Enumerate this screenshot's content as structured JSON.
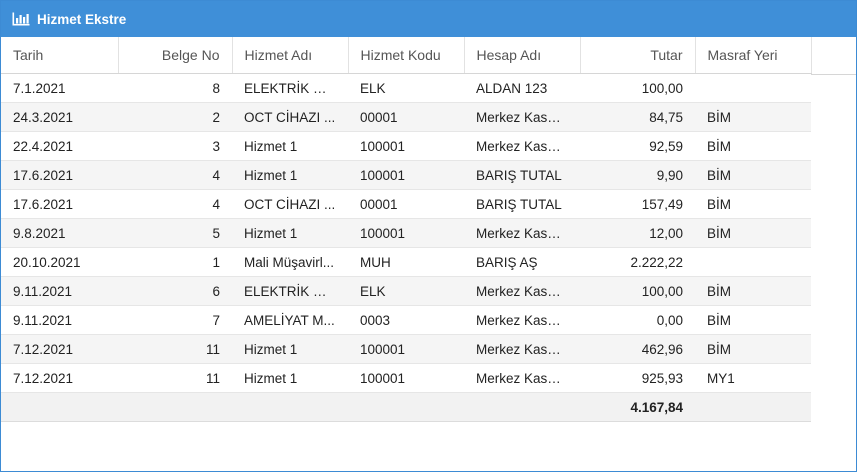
{
  "panel": {
    "title": "Hizmet Ekstre",
    "icon": "bar-chart-icon",
    "header_color": "#3f8fd8"
  },
  "columns": [
    "Tarih",
    "Belge No",
    "Hizmet Adı",
    "Hizmet Kodu",
    "Hesap Adı",
    "Tutar",
    "Masraf Yeri"
  ],
  "rows": [
    [
      "7.1.2021",
      "8",
      "ELEKTRİK Gİ...",
      "ELK",
      "ALDAN 123",
      "100,00",
      ""
    ],
    [
      "24.3.2021",
      "2",
      "OCT CİHAZI ...",
      "00001",
      "Merkez Kasa ...",
      "84,75",
      "BİM"
    ],
    [
      "22.4.2021",
      "3",
      "Hizmet 1",
      "100001",
      "Merkez Kasa ...",
      "92,59",
      "BİM"
    ],
    [
      "17.6.2021",
      "4",
      "Hizmet 1",
      "100001",
      "BARIŞ TUTAL",
      "9,90",
      "BİM"
    ],
    [
      "17.6.2021",
      "4",
      "OCT CİHAZI ...",
      "00001",
      "BARIŞ TUTAL",
      "157,49",
      "BİM"
    ],
    [
      "9.8.2021",
      "5",
      "Hizmet 1",
      "100001",
      "Merkez Kasa ...",
      "12,00",
      "BİM"
    ],
    [
      "20.10.2021",
      "1",
      "Mali Müşavirl...",
      "MUH",
      "BARIŞ AŞ",
      "2.222,22",
      ""
    ],
    [
      "9.11.2021",
      "6",
      "ELEKTRİK Gİ...",
      "ELK",
      "Merkez Kasa ...",
      "100,00",
      "BİM"
    ],
    [
      "9.11.2021",
      "7",
      "AMELİYAT M...",
      "0003",
      "Merkez Kasa ...",
      "0,00",
      "BİM"
    ],
    [
      "7.12.2021",
      "11",
      "Hizmet 1",
      "100001",
      "Merkez Kasa ...",
      "462,96",
      "BİM"
    ],
    [
      "7.12.2021",
      "11",
      "Hizmet 1",
      "100001",
      "Merkez Kasa ...",
      "925,93",
      "MY1"
    ]
  ],
  "summary": {
    "total": "4.167,84"
  }
}
